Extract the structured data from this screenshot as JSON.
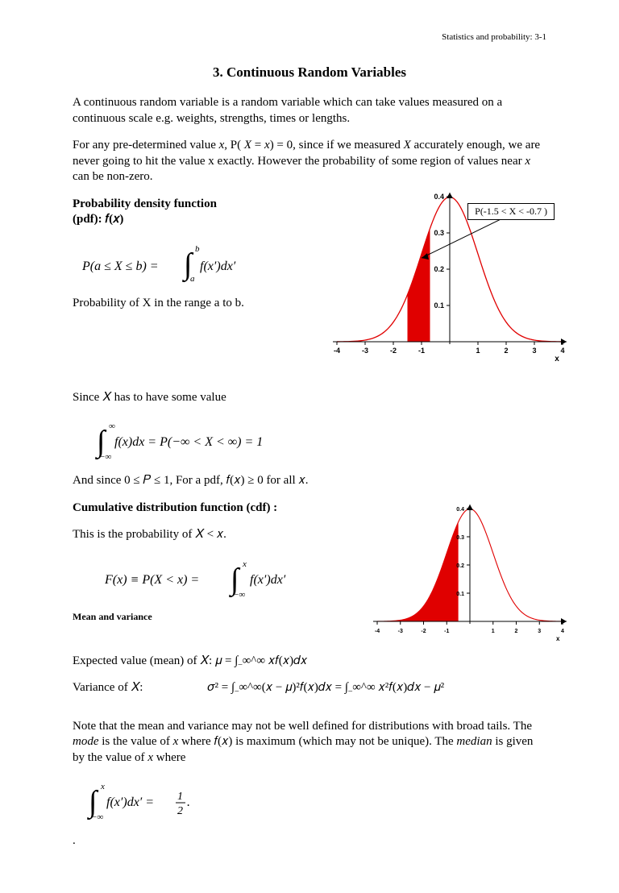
{
  "header": "Statistics and probability:  3-1",
  "title": "3.  Continuous Random Variables",
  "intro1": "A continuous random variable is a random variable which can take values measured on a continuous scale e.g. weights, strengths, times or lengths.",
  "intro2_pre": "For any pre-determined value ",
  "intro2_x": "x",
  "intro2_mid1": ", P( ",
  "intro2_X": "X",
  "intro2_mid2": " = ",
  "intro2_x2": "x",
  "intro2_mid3": ") = 0, since if we measured ",
  "intro2_X2": "X",
  "intro2_end": " accurately enough, we are never going to hit the value x exactly. However the probability of some region of values near ",
  "intro2_x3": "x",
  "intro2_end2": " can be non-zero.",
  "pdf_label1": "Probability density function",
  "pdf_label2": "(pdf): 𝑓(𝑥)",
  "formula_pab": "𝑃(𝑎 ≤ 𝑋 ≤ 𝑏) = ∫ₐᵇ 𝑓(𝑥′)𝑑𝑥′",
  "prob_range": "Probability of X in the range a to b.",
  "since_value": "Since 𝑋 has to have some value",
  "formula_int1": "∫₋∞^∞ 𝑓(𝑥)𝑑𝑥 = 𝑃(−∞ < 𝑋 < ∞) = 1",
  "since_p": "And since 0 ≤ 𝑃 ≤ 1, For a pdf, 𝑓(𝑥) ≥ 0 for all 𝑥.",
  "cdf_heading": "Cumulative distribution function (cdf) :",
  "cdf_text": "This is the probability of 𝑋 < 𝑥.",
  "formula_cdf": "𝐹(𝑥) ≡ 𝑃(𝑋 < 𝑥) = ∫₋∞ˣ 𝑓(𝑥′)𝑑𝑥′",
  "mv_heading": "Mean and variance",
  "mean_text": "Expected value (mean) of 𝑋:  𝜇 = ∫₋∞^∞ 𝑥𝑓(𝑥)𝑑𝑥",
  "var_label": "Variance of 𝑋:",
  "var_formula": "𝜎² =  ∫₋∞^∞(𝑥 − 𝜇)²𝑓(𝑥)𝑑𝑥  = ∫₋∞^∞ 𝑥²𝑓(𝑥)𝑑𝑥 −  𝜇²",
  "note_pre": "Note that the mean and variance may not be well defined for distributions with broad tails.  The ",
  "note_mode": "mode",
  "note_mid1": " is the value of ",
  "note_x1": "x",
  "note_mid2": " where 𝑓(𝑥) is maximum (which may not be unique). The ",
  "note_median": "median",
  "note_mid3": " is given by the value of ",
  "note_x2": "x",
  "note_end": " where",
  "formula_median": "∫₋∞ˣ 𝑓(𝑥′)𝑑𝑥′ = ½.",
  "callout": "P(-1.5 <  X < -0.7 )",
  "chart1": {
    "type": "density",
    "curve_color": "#e00000",
    "fill_color": "#e00000",
    "axis_color": "#000000",
    "xlim": [
      -4,
      4
    ],
    "ylim": [
      0,
      0.4
    ],
    "xticks": [
      -4,
      -3,
      -2,
      -1,
      0,
      1,
      2,
      3,
      4
    ],
    "yticks": [
      0.1,
      0.2,
      0.3,
      0.4
    ],
    "xlabel": "x",
    "fill_range": [
      -1.5,
      -0.7
    ],
    "tick_fontsize": 9,
    "line_width": 1.3
  },
  "chart2": {
    "type": "density",
    "curve_color": "#e00000",
    "fill_color": "#e00000",
    "axis_color": "#000000",
    "xlim": [
      -4,
      4
    ],
    "ylim": [
      0,
      0.4
    ],
    "xticks": [
      -4,
      -3,
      -2,
      -1,
      0,
      1,
      2,
      3,
      4
    ],
    "yticks": [
      0.1,
      0.2,
      0.3,
      0.4
    ],
    "xlabel": "x",
    "fill_range": [
      -4,
      -0.5
    ],
    "tick_fontsize": 7,
    "line_width": 1.1
  }
}
